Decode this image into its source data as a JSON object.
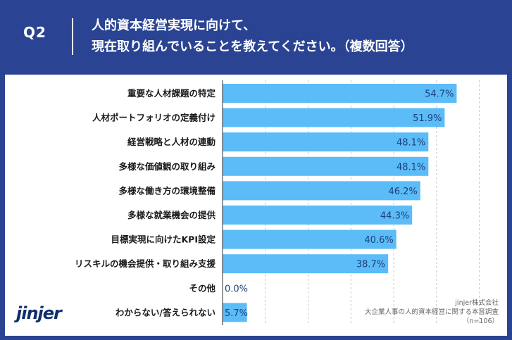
{
  "header": {
    "question_label": "Q2",
    "title_line1": "人的資本経営実現に向けて、",
    "title_line2": "現在取り組んでいることを教えてください。（複数回答）"
  },
  "colors": {
    "background": "#2a4493",
    "bar": "#5bbcf7",
    "value_text": "#1f3f7a",
    "grid": "#c8c8c8"
  },
  "chart_data": {
    "type": "bar",
    "orientation": "horizontal",
    "title": "人的資本経営実現に向けて、現在取り組んでいることを教えてください。（複数回答）",
    "categories": [
      "重要な人材課題の特定",
      "人材ポートフォリオの定義付け",
      "経営戦略と人材の連動",
      "多様な価値観の取り組み",
      "多様な働き方の環境整備",
      "多様な就業機会の提供",
      "目標実現に向けたKPI設定",
      "リスキルの機会提供・取り組み支援",
      "その他",
      "わからない/答えられない"
    ],
    "values": [
      54.7,
      51.9,
      48.1,
      48.1,
      46.2,
      44.3,
      40.6,
      38.7,
      0.0,
      5.7
    ],
    "value_labels": [
      "54.7%",
      "51.9%",
      "48.1%",
      "48.1%",
      "46.2%",
      "44.3%",
      "40.6%",
      "38.7%",
      "0.0%",
      "5.7%"
    ],
    "xlim": [
      0,
      65
    ],
    "unit": "%"
  },
  "credit": {
    "line1": "jinjer株式会社",
    "line2": "大企業人事の人的資本経営に関する本音調査",
    "line3": "（n=106）"
  },
  "logo": {
    "text": "jinjer"
  }
}
